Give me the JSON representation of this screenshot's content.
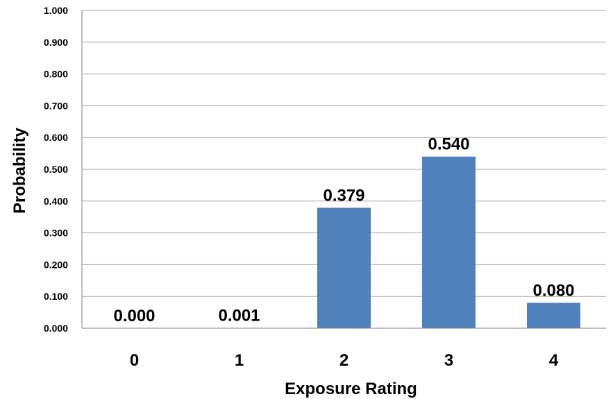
{
  "chart_data": {
    "type": "bar",
    "categories": [
      "0",
      "1",
      "2",
      "3",
      "4"
    ],
    "values": [
      0.0,
      0.001,
      0.379,
      0.54,
      0.08
    ],
    "data_labels": [
      "0.000",
      "0.001",
      "0.379",
      "0.540",
      "0.080"
    ],
    "title": "",
    "xlabel": "Exposure Rating",
    "ylabel": "Probability",
    "ylim": [
      0,
      1
    ],
    "yticks": [
      "0.000",
      "0.100",
      "0.200",
      "0.300",
      "0.400",
      "0.500",
      "0.600",
      "0.700",
      "0.800",
      "0.900",
      "1.000"
    ],
    "grid": true,
    "legend": "none",
    "bar_color": "#4f81bd"
  }
}
